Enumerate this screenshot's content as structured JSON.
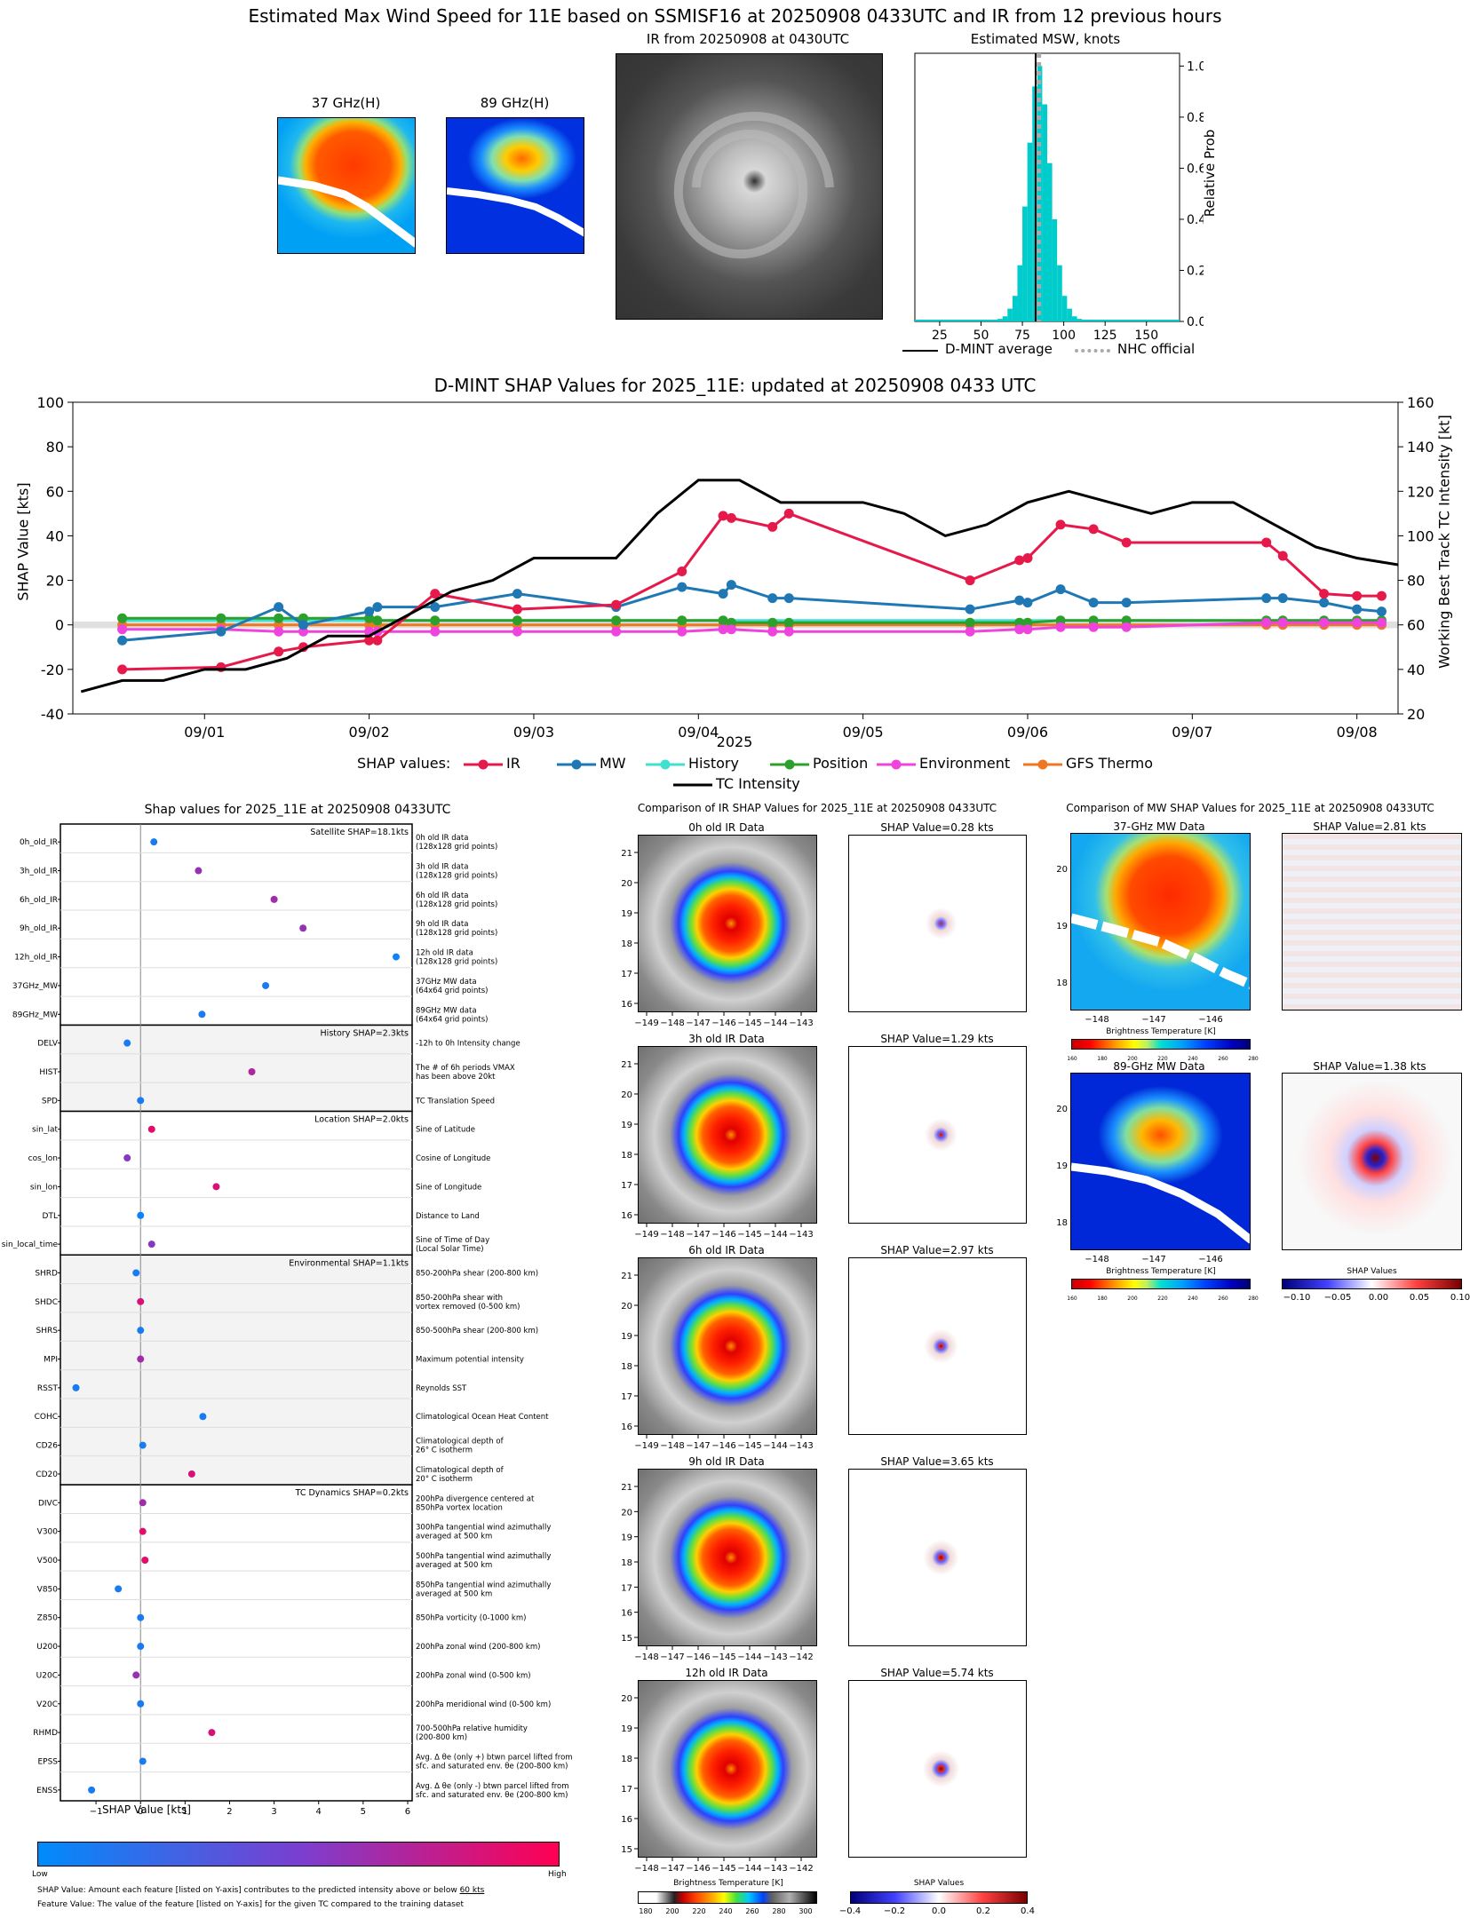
{
  "top": {
    "main_title": "Estimated Max Wind Speed for 11E based on SSMISF16 at 20250908 0433UTC and IR from 12 previous hours",
    "mw37_title": "37 GHz(H)",
    "mw89_title": "89 GHz(H)",
    "ir_title": "IR from 20250908 at 0430UTC",
    "hist_title": "Estimated MSW, knots",
    "hist_ylabel": "Relative Prob",
    "legend_dmint": "D-MINT average",
    "legend_nhc": "NHC official"
  },
  "shap_ts_title": "D-MINT SHAP Values for 2025_11E: updated at 20250908 0433 UTC",
  "shap_ts_ylabel": "SHAP Value [kts]",
  "shap_ts_y2label": "Working Best Track TC Intensity [kt]",
  "shap_ts_xlabel": "2025",
  "shap_legend": {
    "label": "SHAP values:",
    "ir": "IR",
    "mw": "MW",
    "history": "History",
    "position": "Position",
    "environment": "Environment",
    "gfs": "GFS Thermo",
    "tc": "TC Intensity"
  },
  "bee": {
    "title": "Shap values for 2025_11E at 20250908 0433UTC",
    "xlabel": "SHAP Value [kts]",
    "low": "Low",
    "high": "High",
    "note1_a": "SHAP Value: Amount each feature [listed on Y-axis] contributes to the predicted intensity above or below ",
    "note1_b": "60 kts",
    "note2": "Feature Value: The value of the feature [listed on Y-axis] for the given TC compared to the training dataset",
    "groups": [
      {
        "label": "Satellite SHAP=18.1kts"
      },
      {
        "label": "History SHAP=2.3kts"
      },
      {
        "label": "Location SHAP=2.0kts"
      },
      {
        "label": "Environmental SHAP=1.1kts"
      },
      {
        "label": "TC Dynamics SHAP=0.2kts"
      }
    ],
    "features": [
      {
        "name": "0h_old_IR",
        "desc": [
          "0h old IR data",
          "(128x128 grid points)"
        ],
        "shap": 0.3,
        "val": 0.1
      },
      {
        "name": "3h_old_IR",
        "desc": [
          "3h old IR data",
          "(128x128 grid points)"
        ],
        "shap": 1.3,
        "val": 0.6
      },
      {
        "name": "6h_old_IR",
        "desc": [
          "6h old IR data",
          "(128x128 grid points)"
        ],
        "shap": 3.0,
        "val": 0.65
      },
      {
        "name": "9h_old_IR",
        "desc": [
          "9h old IR data",
          "(128x128 grid points)"
        ],
        "shap": 3.65,
        "val": 0.6
      },
      {
        "name": "12h_old_IR",
        "desc": [
          "12h old IR data",
          "(128x128 grid points)"
        ],
        "shap": 5.74,
        "val": 0.05
      },
      {
        "name": "37GHz_MW",
        "desc": [
          "37GHz MW data",
          "(64x64 grid points)"
        ],
        "shap": 2.81,
        "val": 0.1
      },
      {
        "name": "89GHz_MW",
        "desc": [
          "89GHz MW data",
          "(64x64 grid points)"
        ],
        "shap": 1.38,
        "val": 0.1
      },
      {
        "name": "DELV",
        "desc": [
          "-12h to 0h Intensity change"
        ],
        "shap": -0.3,
        "val": 0.1
      },
      {
        "name": "HIST",
        "desc": [
          "The # of 6h periods VMAX",
          "has been above 20kt"
        ],
        "shap": 2.5,
        "val": 0.7
      },
      {
        "name": "SPD",
        "desc": [
          "TC Translation Speed"
        ],
        "shap": 0.0,
        "val": 0.1
      },
      {
        "name": "sin_lat",
        "desc": [
          "Sine of Latitude"
        ],
        "shap": 0.25,
        "val": 0.9
      },
      {
        "name": "cos_lon",
        "desc": [
          "Cosine of Longitude"
        ],
        "shap": -0.3,
        "val": 0.55
      },
      {
        "name": "sin_lon",
        "desc": [
          "Sine of Longitude"
        ],
        "shap": 1.7,
        "val": 0.85
      },
      {
        "name": "DTL",
        "desc": [
          "Distance to Land"
        ],
        "shap": 0.0,
        "val": 0.05
      },
      {
        "name": "sin_local_time",
        "desc": [
          "Sine of Time of Day",
          "(Local Solar Time)"
        ],
        "shap": 0.25,
        "val": 0.55
      },
      {
        "name": "SHRD",
        "desc": [
          "850-200hPa shear (200-800 km)"
        ],
        "shap": -0.1,
        "val": 0.1
      },
      {
        "name": "SHDC",
        "desc": [
          "850-200hPa shear with",
          "vortex removed (0-500 km)"
        ],
        "shap": 0.0,
        "val": 0.85
      },
      {
        "name": "SHRS",
        "desc": [
          "850-500hPa shear (200-800 km)"
        ],
        "shap": 0.0,
        "val": 0.1
      },
      {
        "name": "MPI",
        "desc": [
          "Maximum potential intensity"
        ],
        "shap": 0.0,
        "val": 0.65
      },
      {
        "name": "RSST",
        "desc": [
          "Reynolds SST"
        ],
        "shap": -1.45,
        "val": 0.1
      },
      {
        "name": "COHC",
        "desc": [
          "Climatological Ocean Heat Content"
        ],
        "shap": 1.4,
        "val": 0.1
      },
      {
        "name": "CD26",
        "desc": [
          "Climatological depth of",
          "26° C isotherm"
        ],
        "shap": 0.05,
        "val": 0.1
      },
      {
        "name": "CD20",
        "desc": [
          "Climatological depth of",
          "20° C isotherm"
        ],
        "shap": 1.15,
        "val": 0.85
      },
      {
        "name": "DIVC",
        "desc": [
          "200hPa divergence centered at",
          "850hPa vortex location"
        ],
        "shap": 0.05,
        "val": 0.65
      },
      {
        "name": "V300",
        "desc": [
          "300hPa tangential wind azimuthally",
          "averaged at 500 km"
        ],
        "shap": 0.05,
        "val": 0.9
      },
      {
        "name": "V500",
        "desc": [
          "500hPa tangential wind azimuthally",
          "averaged at 500 km"
        ],
        "shap": 0.1,
        "val": 0.9
      },
      {
        "name": "V850",
        "desc": [
          "850hPa tangential wind azimuthally",
          "averaged at 500 km"
        ],
        "shap": -0.5,
        "val": 0.1
      },
      {
        "name": "Z850",
        "desc": [
          "850hPa vorticity (0-1000 km)"
        ],
        "shap": 0.0,
        "val": 0.1
      },
      {
        "name": "U200",
        "desc": [
          "200hPa zonal wind (200-800 km)"
        ],
        "shap": 0.0,
        "val": 0.1
      },
      {
        "name": "U20C",
        "desc": [
          "200hPa zonal wind (0-500 km)"
        ],
        "shap": -0.1,
        "val": 0.6
      },
      {
        "name": "V20C",
        "desc": [
          "200hPa meridional wind (0-500 km)"
        ],
        "shap": 0.0,
        "val": 0.1
      },
      {
        "name": "RHMD",
        "desc": [
          "700-500hPa relative humidity",
          "(200-800 km)"
        ],
        "shap": 1.6,
        "val": 0.85
      },
      {
        "name": "EPSS",
        "desc": [
          "Avg. Δ θe (only +) btwn parcel lifted from",
          "sfc. and saturated env. θe (200-800 km)"
        ],
        "shap": 0.05,
        "val": 0.1
      },
      {
        "name": "ENSS",
        "desc": [
          "Avg. Δ θe (only -) btwn parcel lifted from",
          "sfc. and saturated env. θe (200-800 km)"
        ],
        "shap": -1.1,
        "val": 0.1
      }
    ]
  },
  "ir_cmp": {
    "title": "Comparison of IR SHAP Values for 2025_11E at 20250908 0433UTC",
    "rows": [
      {
        "label": "0h old IR Data",
        "shap": "SHAP Value=0.28 kts"
      },
      {
        "label": "3h old IR Data",
        "shap": "SHAP Value=1.29 kts"
      },
      {
        "label": "6h old IR Data",
        "shap": "SHAP Value=2.97 kts"
      },
      {
        "label": "9h old IR Data",
        "shap": "SHAP Value=3.65 kts"
      },
      {
        "label": "12h old IR Data",
        "shap": "SHAP Value=5.74 kts"
      }
    ],
    "bt_label": "Brightness Temperature [K]",
    "sv_label": "SHAP Values"
  },
  "mw_cmp": {
    "title": "Comparison of MW SHAP Values for 2025_11E at 20250908 0433UTC",
    "m37": "37-GHz MW Data",
    "m37_shap": "SHAP Value=2.81 kts",
    "m89": "89-GHz MW Data",
    "m89_shap": "SHAP Value=1.38 kts",
    "bt_label": "Brightness Temperature [K]",
    "sv_label": "SHAP Values"
  },
  "chart_data": [
    {
      "type": "bar",
      "title": "Estimated MSW, knots",
      "ylabel": "Relative Prob",
      "xlim": [
        10,
        170
      ],
      "ylim": [
        0,
        1.05
      ],
      "x_ticks": [
        25,
        50,
        75,
        100,
        125,
        150
      ],
      "y_ticks": [
        0.0,
        0.2,
        0.4,
        0.6,
        0.8,
        1.0
      ],
      "bins": [
        60,
        63,
        66,
        69,
        72,
        75,
        78,
        81,
        84,
        87,
        90,
        93,
        96,
        99,
        102,
        105,
        108
      ],
      "values": [
        0.01,
        0.02,
        0.05,
        0.1,
        0.22,
        0.45,
        0.7,
        0.92,
        1.0,
        0.85,
        0.62,
        0.4,
        0.22,
        0.1,
        0.05,
        0.02,
        0.01
      ],
      "dmint_average": 83,
      "nhc_official": 85
    },
    {
      "type": "line",
      "title": "D-MINT SHAP Values for 2025_11E: updated at 20250908 0433 UTC",
      "ylabel": "SHAP Value [kts]",
      "y2label": "Working Best Track TC Intensity [kt]",
      "xlabel": "2025",
      "ylim": [
        -40,
        100
      ],
      "y2lim": [
        20,
        160
      ],
      "x_ticks": [
        "09/01",
        "09/02",
        "09/03",
        "09/04",
        "09/05",
        "09/06",
        "09/07",
        "09/08"
      ],
      "series": [
        {
          "name": "IR",
          "x": [
            -0.5,
            0.1,
            0.45,
            0.6,
            1.0,
            1.05,
            1.4,
            1.9,
            2.5,
            2.9,
            3.15,
            3.2,
            3.45,
            3.55,
            4.65,
            4.95,
            5.0,
            5.2,
            5.4,
            5.6,
            6.45,
            6.55,
            6.8,
            7.0,
            7.15
          ],
          "y": [
            -20,
            -19,
            -12,
            -10,
            -7,
            -7,
            14,
            7,
            9,
            24,
            49,
            48,
            44,
            50,
            20,
            29,
            30,
            45,
            43,
            37,
            37,
            31,
            14,
            13,
            13
          ]
        },
        {
          "name": "MW",
          "x": [
            -0.5,
            0.1,
            0.45,
            0.6,
            1.0,
            1.05,
            1.4,
            1.9,
            2.5,
            2.9,
            3.15,
            3.2,
            3.45,
            3.55,
            4.65,
            4.95,
            5.0,
            5.2,
            5.4,
            5.6,
            6.45,
            6.55,
            6.8,
            7.0,
            7.15
          ],
          "y": [
            -7,
            -3,
            8,
            0,
            6,
            8,
            8,
            14,
            8,
            17,
            14,
            18,
            12,
            12,
            7,
            11,
            10,
            16,
            10,
            10,
            12,
            12,
            10,
            7,
            6
          ]
        },
        {
          "name": "History",
          "x": [
            -0.5,
            7.15
          ],
          "y": [
            2,
            2
          ]
        },
        {
          "name": "Position",
          "x": [
            -0.5,
            0.1,
            0.45,
            0.6,
            1.0,
            1.05,
            1.4,
            1.9,
            2.5,
            2.9,
            3.15,
            3.2,
            3.45,
            3.55,
            4.65,
            4.95,
            5.0,
            5.2,
            5.4,
            5.6,
            6.45,
            6.55,
            6.8,
            7.0,
            7.15
          ],
          "y": [
            3,
            3,
            3,
            3,
            3,
            2,
            2,
            2,
            2,
            2,
            2,
            1,
            1,
            1,
            1,
            1,
            1,
            2,
            2,
            2,
            2,
            2,
            2,
            2,
            2
          ]
        },
        {
          "name": "Environment",
          "x": [
            -0.5,
            0.1,
            0.45,
            0.6,
            1.0,
            1.05,
            1.4,
            1.9,
            2.5,
            2.9,
            3.15,
            3.2,
            3.45,
            3.55,
            4.65,
            4.95,
            5.0,
            5.2,
            5.4,
            5.6,
            6.45,
            6.55,
            6.8,
            7.0,
            7.15
          ],
          "y": [
            -2,
            -2,
            -3,
            -3,
            -3,
            -3,
            -3,
            -3,
            -3,
            -3,
            -2,
            -2,
            -3,
            -3,
            -3,
            -2,
            -2,
            -1,
            -1,
            -1,
            1,
            1,
            1,
            1,
            1
          ]
        },
        {
          "name": "GFS Thermo",
          "x": [
            -0.5,
            0.1,
            0.45,
            0.6,
            1.0,
            1.05,
            1.4,
            1.9,
            2.5,
            2.9,
            3.15,
            3.2,
            3.45,
            3.55,
            4.65,
            4.95,
            5.0,
            5.2,
            5.4,
            5.6,
            6.45,
            6.55,
            6.8,
            7.0,
            7.15
          ],
          "y": [
            0,
            0,
            0,
            0,
            0,
            0,
            0,
            0,
            0,
            0,
            0,
            0,
            0,
            0,
            0,
            0,
            0,
            0,
            0,
            0,
            0,
            0,
            0,
            0,
            0
          ]
        },
        {
          "name": "TC Intensity",
          "axis": "right",
          "x": [
            -0.75,
            -0.5,
            -0.25,
            0.0,
            0.25,
            0.5,
            0.75,
            1.0,
            1.25,
            1.5,
            1.75,
            2.0,
            2.25,
            2.5,
            2.75,
            3.0,
            3.25,
            3.5,
            3.75,
            4.0,
            4.25,
            4.5,
            4.75,
            5.0,
            5.25,
            5.5,
            5.75,
            6.0,
            6.25,
            6.5,
            6.75,
            7.0,
            7.25
          ],
          "y": [
            30,
            35,
            35,
            40,
            40,
            45,
            55,
            55,
            65,
            75,
            80,
            90,
            90,
            90,
            110,
            125,
            125,
            115,
            115,
            115,
            110,
            100,
            105,
            115,
            120,
            115,
            110,
            115,
            115,
            105,
            95,
            90,
            87
          ]
        }
      ]
    },
    {
      "type": "scatter",
      "title": "Shap values for 2025_11E at 20250908 0433UTC",
      "xlabel": "SHAP Value [kts]",
      "xlim": [
        -1.8,
        6.1
      ],
      "x_ticks": [
        -1,
        0,
        1,
        2,
        3,
        4,
        5,
        6
      ]
    }
  ]
}
